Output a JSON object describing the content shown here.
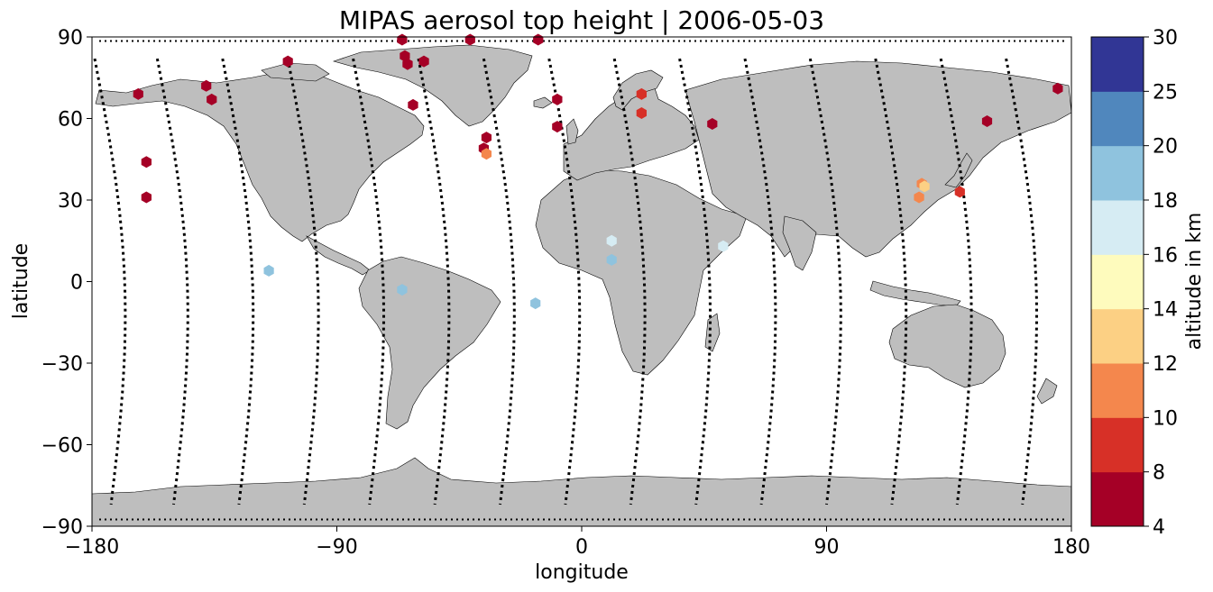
{
  "chart_data": {
    "type": "scatter",
    "title": "MIPAS aerosol top height | 2006-05-03",
    "xlabel": "longitude",
    "ylabel": "latitude",
    "xlim": [
      -180,
      180
    ],
    "ylim": [
      -90,
      90
    ],
    "x_ticks": [
      -180,
      -90,
      0,
      90,
      180
    ],
    "y_ticks": [
      -90,
      -60,
      -30,
      0,
      30,
      60,
      90
    ],
    "x_tick_labels": [
      "−180",
      "−90",
      "0",
      "90",
      "180"
    ],
    "y_tick_labels": [
      "−90",
      "−60",
      "−30",
      "0",
      "30",
      "60",
      "90"
    ],
    "grid": false,
    "colorbar": {
      "label": "altitude in km",
      "levels": [
        4,
        8,
        10,
        12,
        14,
        16,
        18,
        20,
        25,
        30
      ],
      "tick_labels": [
        "4",
        "8",
        "10",
        "12",
        "14",
        "16",
        "18",
        "20",
        "25",
        "30"
      ],
      "colors": [
        "#a50026",
        "#d73027",
        "#f46d43",
        "#fdae61",
        "#fee090",
        "#e0f3f8",
        "#abd9e9",
        "#74add1",
        "#4575b4",
        "#313695"
      ],
      "band_colors": [
        "#a50026",
        "#d73027",
        "#f4874d",
        "#fcd084",
        "#fefbbd",
        "#d6ecf3",
        "#8fc3de",
        "#5087bd",
        "#313695"
      ]
    },
    "orbit_tracks_color": "#000000",
    "orbit_tracks": [
      {
        "lon0": -179,
        "lon1": -173
      },
      {
        "lon0": -156,
        "lon1": -150
      },
      {
        "lon0": -132,
        "lon1": -126
      },
      {
        "lon0": -108,
        "lon1": -102
      },
      {
        "lon0": -84,
        "lon1": -78
      },
      {
        "lon0": -60,
        "lon1": -54
      },
      {
        "lon0": -36,
        "lon1": -30
      },
      {
        "lon0": -12,
        "lon1": -6
      },
      {
        "lon0": 12,
        "lon1": 18
      },
      {
        "lon0": 36,
        "lon1": 42
      },
      {
        "lon0": 60,
        "lon1": 66
      },
      {
        "lon0": 84,
        "lon1": 90
      },
      {
        "lon0": 108,
        "lon1": 114
      },
      {
        "lon0": 132,
        "lon1": 138
      },
      {
        "lon0": 156,
        "lon1": 162
      }
    ],
    "points": [
      {
        "lon": -163,
        "lat": 69,
        "alt": 5
      },
      {
        "lon": -160,
        "lat": 44,
        "alt": 5
      },
      {
        "lon": -160,
        "lat": 31,
        "alt": 5
      },
      {
        "lon": -138,
        "lat": 72,
        "alt": 5
      },
      {
        "lon": -136,
        "lat": 67,
        "alt": 5
      },
      {
        "lon": -108,
        "lat": 81,
        "alt": 5
      },
      {
        "lon": -66,
        "lat": 89,
        "alt": 5
      },
      {
        "lon": -65,
        "lat": 83,
        "alt": 5
      },
      {
        "lon": -64,
        "lat": 80,
        "alt": 5
      },
      {
        "lon": -58,
        "lat": 81,
        "alt": 5
      },
      {
        "lon": -62,
        "lat": 65,
        "alt": 5
      },
      {
        "lon": -41,
        "lat": 89,
        "alt": 5
      },
      {
        "lon": -35,
        "lat": 53,
        "alt": 5
      },
      {
        "lon": -36,
        "lat": 49,
        "alt": 5
      },
      {
        "lon": -35,
        "lat": 47,
        "alt": 11
      },
      {
        "lon": -16,
        "lat": 89,
        "alt": 5
      },
      {
        "lon": -9,
        "lat": 67,
        "alt": 5
      },
      {
        "lon": -9,
        "lat": 57,
        "alt": 5
      },
      {
        "lon": 22,
        "lat": 69,
        "alt": 9
      },
      {
        "lon": 22,
        "lat": 62,
        "alt": 9
      },
      {
        "lon": 48,
        "lat": 58,
        "alt": 5
      },
      {
        "lon": 125,
        "lat": 36,
        "alt": 11
      },
      {
        "lon": 126,
        "lat": 35,
        "alt": 12
      },
      {
        "lon": 124,
        "lat": 31,
        "alt": 11
      },
      {
        "lon": 139,
        "lat": 33,
        "alt": 9
      },
      {
        "lon": 149,
        "lat": 59,
        "alt": 5
      },
      {
        "lon": 175,
        "lat": 71,
        "alt": 5
      },
      {
        "lon": -115,
        "lat": 4,
        "alt": 19
      },
      {
        "lon": -66,
        "lat": -3,
        "alt": 19
      },
      {
        "lon": -17,
        "lat": -8,
        "alt": 19
      },
      {
        "lon": 11,
        "lat": 8,
        "alt": 19
      },
      {
        "lon": 11,
        "lat": 15,
        "alt": 17
      },
      {
        "lon": 52,
        "lat": 13,
        "alt": 17
      }
    ]
  }
}
